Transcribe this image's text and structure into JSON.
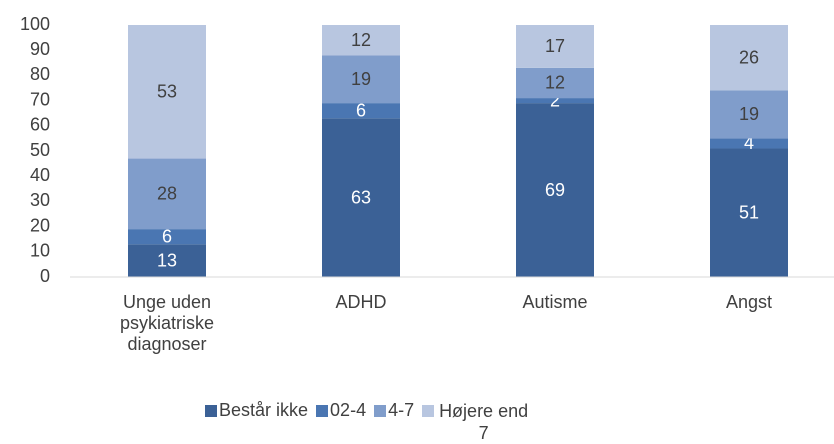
{
  "chart_data": {
    "type": "bar",
    "stacked": true,
    "categories": [
      "Unge uden psykiatriske diagnoser",
      "ADHD",
      "Autisme",
      "Angst"
    ],
    "series": [
      {
        "name": "Består ikke",
        "color": "#3b6196",
        "values": [
          13,
          63,
          69,
          51
        ]
      },
      {
        "name": "02-4",
        "color": "#4a76b2",
        "values": [
          6,
          6,
          2,
          4
        ]
      },
      {
        "name": "4-7",
        "color": "#809dcb",
        "values": [
          28,
          19,
          12,
          19
        ]
      },
      {
        "name": "Højere end 7",
        "color": "#b8c6e0",
        "values": [
          53,
          12,
          17,
          26
        ]
      }
    ],
    "ylim": [
      0,
      100
    ],
    "yticks": [
      0,
      10,
      20,
      30,
      40,
      50,
      60,
      70,
      80,
      90,
      100
    ],
    "legend": "bottom"
  }
}
